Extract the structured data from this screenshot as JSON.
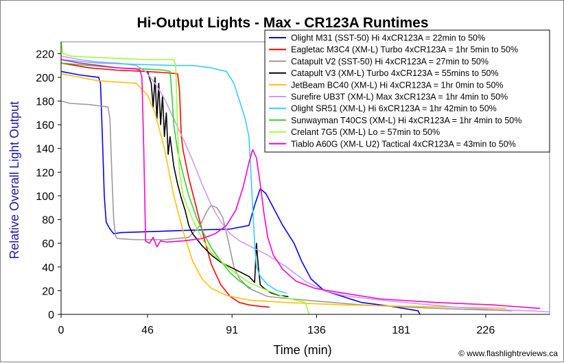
{
  "chart_data": {
    "type": "line",
    "title": "Hi-Output Lights - Max - CR123A Runtimes",
    "xlabel": "Time (min)",
    "ylabel": "Relative Overall Light Output",
    "xlim": [
      0,
      260
    ],
    "ylim": [
      0,
      230
    ],
    "x_ticks": [
      0,
      46,
      91,
      136,
      181,
      226
    ],
    "y_ticks": [
      0,
      20,
      40,
      60,
      80,
      100,
      120,
      140,
      160,
      180,
      200,
      220
    ],
    "grid": false,
    "legend_position": "top-right",
    "credit": "© www.flashlightreviews.ca",
    "series": [
      {
        "name": "Olight M31 (SST-50) Hi 4xCR123A = 22min to 50%",
        "color": "#0000ff",
        "points": [
          [
            0,
            205
          ],
          [
            10,
            202
          ],
          [
            20,
            200
          ],
          [
            21,
            195
          ],
          [
            22,
            150
          ],
          [
            23,
            100
          ],
          [
            24,
            78
          ],
          [
            26,
            72
          ],
          [
            28,
            68
          ],
          [
            32,
            69
          ],
          [
            50,
            70
          ],
          [
            70,
            71
          ],
          [
            90,
            72
          ],
          [
            100,
            75
          ],
          [
            103,
            92
          ],
          [
            106,
            106
          ],
          [
            109,
            102
          ],
          [
            113,
            90
          ],
          [
            118,
            75
          ],
          [
            124,
            60
          ],
          [
            128,
            45
          ],
          [
            133,
            30
          ],
          [
            140,
            20
          ],
          [
            150,
            15
          ],
          [
            160,
            10
          ],
          [
            175,
            7
          ],
          [
            190,
            3
          ],
          [
            191,
            0
          ]
        ]
      },
      {
        "name": "Eagletac M3C4 (XM-L) Turbo 4xCR123A = 1hr 5min to 50%",
        "color": "#ff0000",
        "points": [
          [
            0,
            212
          ],
          [
            15,
            208
          ],
          [
            30,
            206
          ],
          [
            45,
            205
          ],
          [
            55,
            204
          ],
          [
            62,
            203
          ],
          [
            63,
            190
          ],
          [
            64,
            150
          ],
          [
            65,
            138
          ],
          [
            68,
            115
          ],
          [
            72,
            90
          ],
          [
            76,
            65
          ],
          [
            80,
            42
          ],
          [
            85,
            25
          ],
          [
            90,
            15
          ],
          [
            95,
            10
          ],
          [
            100,
            8
          ],
          [
            105,
            7
          ],
          [
            111,
            6
          ]
        ]
      },
      {
        "name": "Catapult V2 (SST-50) Hi 4xCR123A = 27min to 50%",
        "color": "#999999",
        "points": [
          [
            0,
            180
          ],
          [
            5,
            178
          ],
          [
            15,
            177
          ],
          [
            25,
            175
          ],
          [
            26,
            165
          ],
          [
            27,
            120
          ],
          [
            28,
            80
          ],
          [
            29,
            66
          ],
          [
            30,
            64
          ],
          [
            40,
            63
          ],
          [
            55,
            63
          ],
          [
            68,
            65
          ],
          [
            74,
            75
          ],
          [
            78,
            88
          ],
          [
            80,
            92
          ],
          [
            83,
            90
          ],
          [
            86,
            82
          ],
          [
            89,
            62
          ],
          [
            92,
            40
          ],
          [
            95,
            30
          ],
          [
            100,
            22
          ],
          [
            110,
            15
          ],
          [
            130,
            12
          ],
          [
            160,
            8
          ],
          [
            200,
            5
          ],
          [
            240,
            3
          ]
        ]
      },
      {
        "name": "Catapult V3 (XM-L) Turbo 4xCR123A = 55mins to 50%",
        "color": "#000000",
        "points": [
          [
            46,
            205
          ],
          [
            48,
            195
          ],
          [
            49,
            175
          ],
          [
            50,
            200
          ],
          [
            51,
            165
          ],
          [
            52,
            195
          ],
          [
            53,
            160
          ],
          [
            54,
            185
          ],
          [
            55,
            150
          ],
          [
            56,
            170
          ],
          [
            57,
            135
          ],
          [
            58,
            150
          ],
          [
            60,
            125
          ],
          [
            62,
            110
          ],
          [
            64,
            98
          ],
          [
            66,
            88
          ],
          [
            68,
            75
          ],
          [
            70,
            68
          ],
          [
            75,
            58
          ],
          [
            80,
            50
          ],
          [
            85,
            44
          ],
          [
            90,
            40
          ],
          [
            95,
            36
          ],
          [
            100,
            32
          ],
          [
            103,
            27
          ],
          [
            104,
            60
          ],
          [
            105,
            40
          ],
          [
            106,
            25
          ],
          [
            108,
            22
          ],
          [
            112,
            18
          ],
          [
            116,
            16
          ],
          [
            121,
            15
          ]
        ]
      },
      {
        "name": "JetBeam BC40 (XM-L) Hi 4xCR123A = 1hr 0min to 50%",
        "color": "#ffc000",
        "points": [
          [
            0,
            203
          ],
          [
            10,
            200
          ],
          [
            20,
            197
          ],
          [
            30,
            196
          ],
          [
            40,
            195
          ],
          [
            46,
            185
          ],
          [
            50,
            170
          ],
          [
            55,
            140
          ],
          [
            60,
            100
          ],
          [
            65,
            70
          ],
          [
            70,
            45
          ],
          [
            75,
            30
          ],
          [
            80,
            22
          ],
          [
            88,
            16
          ],
          [
            100,
            12
          ],
          [
            120,
            10
          ],
          [
            150,
            8
          ],
          [
            180,
            7
          ],
          [
            210,
            6
          ],
          [
            237,
            5
          ]
        ]
      },
      {
        "name": "Surefire UB3T (XM-L) Max 3xCR123A = 1hr 4min to 50%",
        "color": "#cc99ff",
        "points": [
          [
            0,
            218
          ],
          [
            10,
            215
          ],
          [
            20,
            213
          ],
          [
            30,
            212
          ],
          [
            40,
            210
          ],
          [
            45,
            205
          ],
          [
            50,
            195
          ],
          [
            55,
            182
          ],
          [
            60,
            165
          ],
          [
            65,
            148
          ],
          [
            70,
            130
          ],
          [
            75,
            110
          ],
          [
            80,
            92
          ],
          [
            85,
            78
          ],
          [
            90,
            68
          ],
          [
            95,
            62
          ],
          [
            100,
            58
          ],
          [
            110,
            50
          ],
          [
            120,
            40
          ],
          [
            130,
            28
          ],
          [
            140,
            20
          ],
          [
            150,
            16
          ],
          [
            170,
            12
          ],
          [
            190,
            9
          ],
          [
            210,
            6
          ],
          [
            230,
            4
          ],
          [
            250,
            3
          ],
          [
            260,
            2
          ]
        ]
      },
      {
        "name": "Olight SR51 (XM-L) Hi 6xCR123A = 1hr 42min to 50%",
        "color": "#33ccff",
        "points": [
          [
            0,
            215
          ],
          [
            20,
            212
          ],
          [
            40,
            211
          ],
          [
            60,
            210
          ],
          [
            70,
            210
          ],
          [
            80,
            208
          ],
          [
            88,
            205
          ],
          [
            92,
            195
          ],
          [
            95,
            180
          ],
          [
            98,
            165
          ],
          [
            100,
            150
          ],
          [
            101,
            120
          ],
          [
            102,
            90
          ],
          [
            103,
            60
          ],
          [
            104,
            40
          ],
          [
            106,
            32
          ],
          [
            110,
            25
          ],
          [
            115,
            20
          ],
          [
            120,
            18
          ]
        ]
      },
      {
        "name": "Sunwayman T40CS (XM-L) Hi 4xCR123A = 1hr 4min to 50%",
        "color": "#33cc33",
        "points": [
          [
            0,
            212
          ],
          [
            15,
            210
          ],
          [
            30,
            208
          ],
          [
            45,
            207
          ],
          [
            55,
            206
          ],
          [
            58,
            205
          ],
          [
            59,
            185
          ],
          [
            60,
            160
          ],
          [
            62,
            138
          ],
          [
            65,
            118
          ],
          [
            68,
            100
          ],
          [
            72,
            82
          ],
          [
            76,
            68
          ],
          [
            80,
            56
          ],
          [
            85,
            45
          ],
          [
            90,
            35
          ],
          [
            95,
            28
          ],
          [
            98,
            25
          ],
          [
            101,
            22
          ]
        ]
      },
      {
        "name": "Crelant 7G5 (XM-L) Lo = 57min to 50%",
        "color": "#99ff33",
        "points": [
          [
            0,
            230
          ],
          [
            1,
            220
          ],
          [
            5,
            218
          ],
          [
            15,
            217
          ],
          [
            30,
            216
          ],
          [
            45,
            215
          ],
          [
            55,
            215
          ],
          [
            60,
            215
          ],
          [
            61,
            210
          ],
          [
            62,
            160
          ],
          [
            63,
            120
          ],
          [
            65,
            100
          ],
          [
            70,
            80
          ],
          [
            75,
            64
          ],
          [
            80,
            52
          ],
          [
            90,
            38
          ],
          [
            100,
            27
          ],
          [
            110,
            20
          ],
          [
            120,
            14
          ],
          [
            130,
            10
          ],
          [
            132,
            0
          ]
        ]
      },
      {
        "name": "Tiablo A60G (XM-L U2) Tactical 4xCR123A = 43min to 50%",
        "color": "#ff00cc",
        "points": [
          [
            0,
            215
          ],
          [
            10,
            212
          ],
          [
            20,
            210
          ],
          [
            30,
            208
          ],
          [
            40,
            207
          ],
          [
            42,
            206
          ],
          [
            43,
            200
          ],
          [
            44,
            140
          ],
          [
            45,
            62
          ],
          [
            47,
            60
          ],
          [
            49,
            65
          ],
          [
            51,
            57
          ],
          [
            53,
            62
          ],
          [
            56,
            61
          ],
          [
            65,
            62
          ],
          [
            75,
            64
          ],
          [
            82,
            68
          ],
          [
            88,
            75
          ],
          [
            93,
            88
          ],
          [
            97,
            108
          ],
          [
            100,
            128
          ],
          [
            102,
            139
          ],
          [
            104,
            132
          ],
          [
            106,
            110
          ],
          [
            108,
            85
          ],
          [
            110,
            65
          ],
          [
            113,
            50
          ],
          [
            118,
            38
          ],
          [
            125,
            28
          ],
          [
            135,
            22
          ],
          [
            150,
            18
          ],
          [
            170,
            13
          ],
          [
            200,
            10
          ],
          [
            230,
            8
          ],
          [
            255,
            5
          ]
        ]
      }
    ]
  }
}
